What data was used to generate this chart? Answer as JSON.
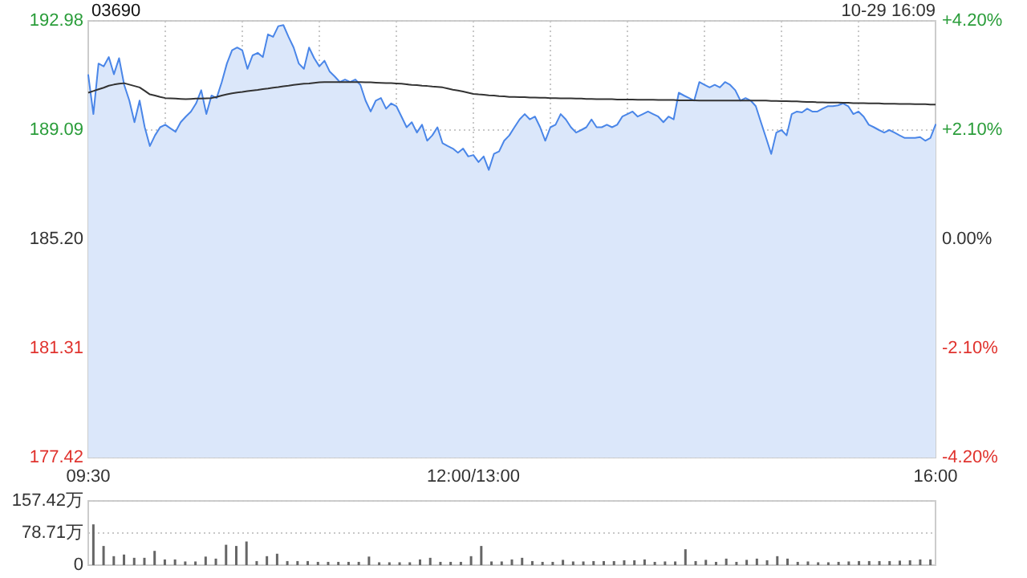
{
  "chart_data": [
    {
      "type": "area",
      "title": "03690",
      "annotations": [
        "10-29 16:09"
      ],
      "grid": true,
      "categories": [
        "09:30",
        null,
        null,
        null,
        null,
        null,
        null,
        null,
        null,
        null,
        null,
        null,
        null,
        null,
        null,
        null,
        null,
        null,
        null,
        null,
        null,
        null,
        null,
        null,
        null,
        null,
        null,
        null,
        null,
        null,
        null,
        null,
        null,
        null,
        null,
        null,
        null,
        null,
        null,
        null,
        null,
        null,
        null,
        null,
        null,
        null,
        null,
        null,
        null,
        null,
        null,
        null,
        null,
        null,
        null,
        null,
        null,
        null,
        null,
        null,
        null,
        null,
        null,
        null,
        null,
        null,
        null,
        null,
        null,
        null,
        null,
        null,
        null,
        null,
        null,
        "12:00/13:00",
        null,
        null,
        null,
        null,
        null,
        null,
        null,
        null,
        null,
        null,
        null,
        null,
        null,
        null,
        null,
        null,
        null,
        null,
        null,
        null,
        null,
        null,
        null,
        null,
        null,
        null,
        null,
        null,
        null,
        null,
        null,
        null,
        null,
        null,
        null,
        null,
        null,
        null,
        null,
        null,
        null,
        null,
        null,
        null,
        null,
        null,
        null,
        null,
        null,
        null,
        null,
        null,
        null,
        null,
        null,
        null,
        null,
        null,
        null,
        null,
        null,
        null,
        null,
        null,
        null,
        null,
        null,
        null,
        null,
        null,
        null,
        null,
        null,
        null,
        null,
        null,
        null,
        null,
        null,
        null,
        null,
        null,
        null,
        null,
        null,
        null,
        null,
        null,
        null,
        "16:00"
      ],
      "ylim": [
        177.42,
        192.98
      ],
      "yticks": [
        177.42,
        181.31,
        {
          "value": 185.2,
          "label": "185.20"
        },
        189.09,
        192.98
      ],
      "y2lim": [
        -4.2,
        4.2
      ],
      "y2ticks": [
        {
          "value": -4.2,
          "label": "-4.20%"
        },
        {
          "value": -2.1,
          "label": "-2.10%"
        },
        {
          "value": 0,
          "label": "0.00%"
        },
        {
          "value": 2.1,
          "label": "+2.10%"
        },
        {
          "value": 4.2,
          "label": "+4.20%"
        }
      ],
      "series": [
        {
          "type": "area",
          "color": "#4a86e8",
          "values": [
            191.05,
            189.66,
            191.46,
            191.36,
            191.69,
            191.08,
            191.65,
            190.7,
            190.14,
            189.37,
            190.14,
            189.19,
            188.52,
            188.9,
            189.19,
            189.28,
            189.15,
            189.03,
            189.37,
            189.57,
            189.75,
            190.04,
            190.51,
            189.66,
            190.32,
            190.23,
            190.8,
            191.46,
            191.93,
            192.03,
            191.93,
            191.27,
            191.75,
            191.84,
            191.69,
            192.5,
            192.41,
            192.79,
            192.83,
            192.41,
            192.03,
            191.46,
            191.27,
            192.03,
            191.65,
            191.36,
            191.56,
            191.18,
            191.0,
            190.8,
            190.89,
            190.8,
            190.89,
            190.7,
            190.14,
            189.75,
            190.14,
            190.23,
            189.85,
            190.04,
            189.94,
            189.57,
            189.19,
            189.37,
            189.0,
            189.28,
            188.71,
            188.9,
            189.19,
            188.62,
            188.52,
            188.43,
            188.28,
            188.43,
            188.15,
            188.2,
            187.95,
            188.15,
            187.67,
            188.24,
            188.33,
            188.71,
            188.9,
            189.19,
            189.47,
            189.66,
            189.47,
            189.57,
            189.19,
            188.71,
            189.19,
            189.28,
            189.66,
            189.47,
            189.19,
            189.0,
            189.09,
            189.19,
            189.47,
            189.19,
            189.19,
            189.28,
            189.19,
            189.28,
            189.57,
            189.66,
            189.75,
            189.57,
            189.66,
            189.75,
            189.66,
            189.57,
            189.37,
            189.57,
            189.47,
            190.42,
            190.32,
            190.23,
            190.14,
            190.8,
            190.7,
            190.61,
            190.7,
            190.61,
            190.8,
            190.7,
            190.51,
            190.14,
            190.23,
            190.14,
            189.94,
            189.37,
            188.81,
            188.24,
            189.0,
            189.09,
            188.9,
            189.66,
            189.75,
            189.72,
            189.85,
            189.75,
            189.75,
            189.85,
            189.94,
            189.94,
            189.97,
            190.04,
            189.94,
            189.66,
            189.75,
            189.57,
            189.28,
            189.19,
            189.09,
            189.0,
            189.09,
            189.0,
            188.9,
            188.81,
            188.81,
            188.81,
            188.84,
            188.71,
            188.81,
            189.28
          ]
        },
        {
          "type": "line",
          "color": "#333333",
          "values": [
            190.42,
            190.48,
            190.54,
            190.6,
            190.67,
            190.71,
            190.74,
            190.76,
            190.71,
            190.66,
            190.61,
            190.49,
            190.36,
            190.32,
            190.27,
            190.23,
            190.22,
            190.21,
            190.2,
            190.19,
            190.2,
            190.21,
            190.21,
            190.22,
            190.23,
            190.27,
            190.32,
            190.36,
            190.4,
            190.43,
            190.45,
            190.48,
            190.5,
            190.52,
            190.55,
            190.57,
            190.6,
            190.62,
            190.65,
            190.67,
            190.7,
            190.72,
            190.74,
            190.75,
            190.77,
            190.79,
            190.8,
            190.8,
            190.8,
            190.8,
            190.8,
            190.8,
            190.8,
            190.8,
            190.79,
            190.79,
            190.78,
            190.77,
            190.76,
            190.76,
            190.75,
            190.74,
            190.72,
            190.7,
            190.69,
            190.67,
            190.66,
            190.64,
            190.63,
            190.61,
            190.57,
            190.53,
            190.5,
            190.46,
            190.42,
            190.38,
            190.36,
            190.35,
            190.33,
            190.32,
            190.3,
            190.29,
            190.27,
            190.27,
            190.26,
            190.26,
            190.25,
            190.25,
            190.24,
            190.24,
            190.23,
            190.23,
            190.22,
            190.22,
            190.22,
            190.21,
            190.21,
            190.2,
            190.2,
            190.19,
            190.19,
            190.19,
            190.19,
            190.18,
            190.18,
            190.18,
            190.18,
            190.17,
            190.17,
            190.17,
            190.17,
            190.16,
            190.16,
            190.16,
            190.16,
            190.15,
            190.15,
            190.15,
            190.15,
            190.14,
            190.14,
            190.14,
            190.14,
            190.14,
            190.14,
            190.14,
            190.14,
            190.14,
            190.14,
            190.14,
            190.14,
            190.14,
            190.14,
            190.13,
            190.13,
            190.12,
            190.12,
            190.11,
            190.11,
            190.1,
            190.09,
            190.09,
            190.08,
            190.08,
            190.07,
            190.07,
            190.07,
            190.06,
            190.06,
            190.05,
            190.05,
            190.05,
            190.04,
            190.04,
            190.04,
            190.03,
            190.03,
            190.03,
            190.02,
            190.02,
            190.02,
            190.01,
            190.01,
            190.01,
            190.0,
            190.0
          ]
        }
      ]
    },
    {
      "type": "bar",
      "grid": "y",
      "tick_labels": "y",
      "categories": [
        null,
        null,
        null,
        null,
        null,
        null,
        null,
        null,
        null,
        null,
        null,
        null,
        null,
        null,
        null,
        null,
        null,
        null,
        null,
        null,
        null,
        null,
        null,
        null,
        null,
        null,
        null,
        null,
        null,
        null,
        null,
        null,
        null,
        null,
        null,
        null,
        null,
        null,
        null,
        null,
        null,
        null,
        null,
        null,
        null,
        null,
        null,
        null,
        null,
        null,
        null,
        null,
        null,
        null,
        null,
        null,
        null,
        null,
        null,
        null,
        null,
        null,
        null,
        null,
        null,
        null,
        null,
        null,
        null,
        null,
        null,
        null,
        null,
        null,
        null,
        null,
        null,
        null,
        null,
        null,
        null,
        null,
        null
      ],
      "ylim": [
        0,
        157.42
      ],
      "yticks": [
        0,
        {
          "value": 78.71,
          "label": "78.71万"
        },
        {
          "value": 157.42,
          "label": "157.42万"
        }
      ],
      "series": [
        {
          "color": "#666666",
          "values": [
            100,
            47,
            22,
            26,
            18,
            18,
            35,
            14,
            14,
            9,
            9,
            21,
            16,
            50,
            47,
            58,
            10,
            22,
            28,
            10,
            10,
            10,
            8,
            8,
            8,
            8,
            8,
            21,
            7,
            7,
            7,
            7,
            14,
            18,
            8,
            8,
            8,
            22,
            47,
            9,
            9,
            14,
            18,
            10,
            8,
            8,
            13,
            9,
            9,
            10,
            10,
            10,
            12,
            12,
            14,
            8,
            9,
            9,
            39,
            10,
            13,
            8,
            16,
            8,
            13,
            16,
            12,
            22,
            16,
            8,
            9,
            7,
            7,
            8,
            9,
            10,
            10,
            10,
            10,
            11,
            12,
            14,
            14
          ]
        }
      ]
    }
  ]
}
